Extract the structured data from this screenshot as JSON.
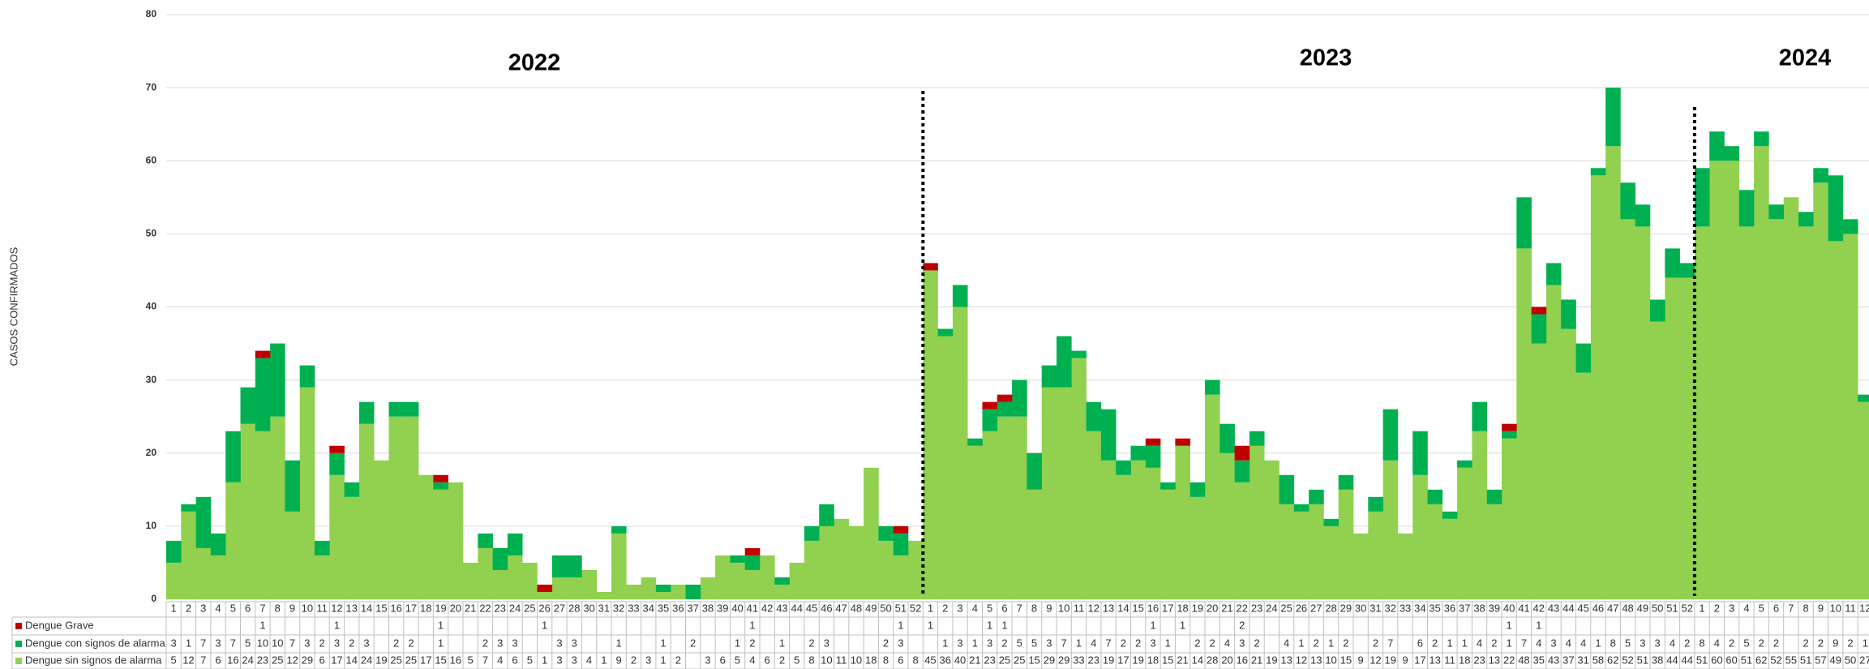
{
  "chart_data": {
    "type": "stacked_bar",
    "y_label": "CASOS CONFIRMADOS",
    "annotations": [
      "2022",
      "2023",
      "2024"
    ],
    "categories": [
      1,
      2,
      3,
      4,
      5,
      6,
      7,
      8,
      9,
      10,
      11,
      12,
      13,
      14,
      15,
      16,
      17,
      18,
      19,
      20,
      21,
      22,
      23,
      24,
      25,
      26,
      27,
      28,
      30,
      31,
      32,
      33,
      34,
      35,
      36,
      37,
      38,
      39,
      40,
      41,
      42,
      43,
      44,
      45,
      46,
      47,
      48,
      49,
      50,
      51,
      52,
      1,
      2,
      3,
      4,
      5,
      6,
      7,
      8,
      9,
      10,
      11,
      12,
      13,
      14,
      15,
      16,
      17,
      18,
      19,
      20,
      21,
      22,
      23,
      24,
      25,
      26,
      27,
      28,
      29,
      30,
      31,
      32,
      33,
      34,
      35,
      36,
      37,
      38,
      39,
      40,
      41,
      42,
      43,
      44,
      45,
      46,
      47,
      48,
      49,
      50,
      51,
      52,
      1,
      2,
      3,
      4,
      5,
      6,
      7,
      8,
      9,
      10,
      11,
      12
    ],
    "series": [
      {
        "name": "Dengue Grave",
        "color": "#c00000",
        "values": [
          null,
          null,
          null,
          null,
          null,
          null,
          1,
          null,
          null,
          null,
          null,
          1,
          null,
          null,
          null,
          null,
          null,
          null,
          1,
          null,
          null,
          null,
          null,
          null,
          null,
          1,
          null,
          null,
          null,
          null,
          null,
          null,
          null,
          null,
          null,
          null,
          null,
          null,
          null,
          1,
          null,
          null,
          null,
          null,
          null,
          null,
          null,
          null,
          null,
          1,
          null,
          1,
          null,
          null,
          null,
          1,
          1,
          null,
          null,
          null,
          null,
          null,
          null,
          null,
          null,
          null,
          1,
          null,
          1,
          null,
          null,
          null,
          2,
          null,
          null,
          null,
          null,
          null,
          null,
          null,
          null,
          null,
          null,
          null,
          null,
          null,
          null,
          null,
          null,
          null,
          1,
          null,
          1,
          null,
          null,
          null,
          null,
          null,
          null,
          null,
          null,
          null,
          null,
          null,
          null,
          null,
          null,
          null,
          null,
          null,
          null,
          null,
          null,
          null,
          null
        ]
      },
      {
        "name": "Dengue con signos de alarma",
        "color": "#00b050",
        "values": [
          3,
          1,
          7,
          3,
          7,
          5,
          10,
          10,
          7,
          3,
          2,
          3,
          2,
          3,
          null,
          2,
          2,
          null,
          1,
          null,
          null,
          2,
          3,
          3,
          null,
          null,
          3,
          3,
          null,
          null,
          1,
          null,
          null,
          1,
          null,
          2,
          null,
          null,
          1,
          2,
          null,
          1,
          null,
          2,
          3,
          null,
          null,
          null,
          2,
          3,
          null,
          null,
          1,
          3,
          1,
          3,
          2,
          5,
          5,
          3,
          7,
          1,
          4,
          7,
          2,
          2,
          3,
          1,
          null,
          2,
          2,
          4,
          3,
          2,
          null,
          4,
          1,
          2,
          1,
          2,
          null,
          2,
          7,
          null,
          6,
          2,
          1,
          1,
          4,
          2,
          1,
          7,
          4,
          3,
          4,
          4,
          1,
          8,
          5,
          3,
          3,
          4,
          2,
          8,
          4,
          2,
          5,
          2,
          2,
          null,
          2,
          2,
          9,
          2,
          1
        ]
      },
      {
        "name": "Dengue sin signos de alarma",
        "color": "#92d050",
        "values": [
          5,
          12,
          7,
          6,
          16,
          24,
          23,
          25,
          12,
          29,
          6,
          17,
          14,
          24,
          19,
          25,
          25,
          17,
          15,
          16,
          5,
          7,
          4,
          6,
          5,
          1,
          3,
          3,
          4,
          1,
          9,
          2,
          3,
          1,
          2,
          null,
          3,
          6,
          5,
          4,
          6,
          2,
          5,
          8,
          10,
          11,
          10,
          18,
          8,
          6,
          8,
          45,
          36,
          40,
          21,
          23,
          25,
          25,
          15,
          29,
          29,
          33,
          23,
          19,
          17,
          19,
          18,
          15,
          21,
          14,
          28,
          20,
          16,
          21,
          19,
          13,
          12,
          13,
          10,
          15,
          9,
          12,
          19,
          9,
          17,
          13,
          11,
          18,
          23,
          13,
          22,
          48,
          35,
          43,
          37,
          31,
          58,
          62,
          52,
          51,
          38,
          44,
          44,
          51,
          60,
          60,
          51,
          62,
          52,
          55,
          51,
          57,
          49,
          50,
          27
        ]
      }
    ],
    "ylim": [
      0,
      80
    ],
    "yticks": [
      0,
      10,
      20,
      30,
      40,
      50,
      60,
      70,
      80
    ],
    "grid": true
  }
}
